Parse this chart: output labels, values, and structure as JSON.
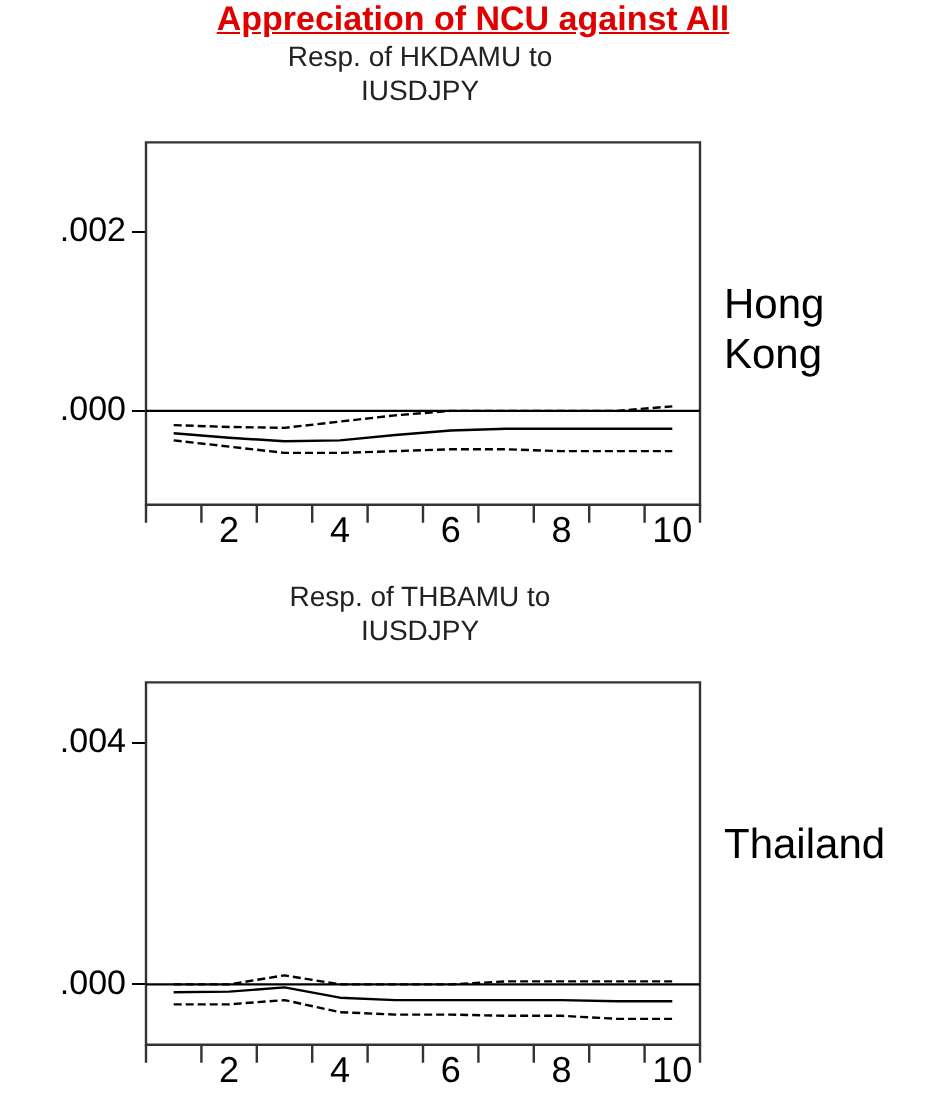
{
  "chart_data": [
    {
      "type": "line",
      "title": "Resp. of HKDAMU to IUSDJPY",
      "annotations": [
        "Appreciation of NCU against All",
        "Hong Kong"
      ],
      "x": [
        1,
        2,
        3,
        4,
        5,
        6,
        7,
        8,
        9,
        10
      ],
      "series": [
        {
          "color": "#000000",
          "line_style": "solid",
          "values": [
            -0.00025,
            -0.0003,
            -0.00034,
            -0.00033,
            -0.00027,
            -0.00022,
            -0.0002,
            -0.0002,
            -0.0002,
            -0.0002
          ]
        },
        {
          "color": "#000000",
          "line_style": "dashed",
          "values": [
            -0.00016,
            -0.00018,
            -0.00019,
            -0.00012,
            -5e-05,
            0,
            0,
            0,
            0,
            5e-05
          ]
        },
        {
          "color": "#000000",
          "line_style": "dashed",
          "values": [
            -0.00033,
            -0.0004,
            -0.00047,
            -0.00047,
            -0.00045,
            -0.00043,
            -0.00043,
            -0.00045,
            -0.00045,
            -0.00045
          ]
        }
      ],
      "xlim": [
        0.5,
        10.5
      ],
      "xticks": [
        {
          "value": 2,
          "label": "2"
        },
        {
          "value": 4,
          "label": "4"
        },
        {
          "value": 6,
          "label": "6"
        },
        {
          "value": 8,
          "label": "8"
        },
        {
          "value": 10,
          "label": "10"
        }
      ],
      "ylim": [
        -0.00105,
        0.003
      ],
      "yticks": [
        {
          "value": 0,
          "label": ".000"
        },
        {
          "value": 0.002,
          "label": ".002"
        }
      ],
      "ref_lines": [
        {
          "axis": "y",
          "value": 0
        }
      ],
      "marker": "none",
      "grid": false,
      "legend": false
    },
    {
      "type": "line",
      "title": "Resp. of THBAMU to IUSDJPY",
      "annotations": [
        "Thailand"
      ],
      "x": [
        1,
        2,
        3,
        4,
        5,
        6,
        7,
        8,
        9,
        10
      ],
      "series": [
        {
          "color": "#000000",
          "line_style": "solid",
          "values": [
            -0.00013,
            -0.00012,
            -5e-05,
            -0.00022,
            -0.00026,
            -0.00026,
            -0.00026,
            -0.00026,
            -0.00028,
            -0.00028
          ]
        },
        {
          "color": "#000000",
          "line_style": "dashed",
          "values": [
            0,
            0,
            0.00015,
            0,
            0,
            0,
            5e-05,
            5e-05,
            5e-05,
            5e-05
          ]
        },
        {
          "color": "#000000",
          "line_style": "dashed",
          "values": [
            -0.00033,
            -0.00033,
            -0.00026,
            -0.00046,
            -0.0005,
            -0.0005,
            -0.00052,
            -0.00052,
            -0.00057,
            -0.00057
          ]
        }
      ],
      "xlim": [
        0.5,
        10.5
      ],
      "xticks": [
        {
          "value": 2,
          "label": "2"
        },
        {
          "value": 4,
          "label": "4"
        },
        {
          "value": 6,
          "label": "6"
        },
        {
          "value": 8,
          "label": "8"
        },
        {
          "value": 10,
          "label": "10"
        }
      ],
      "ylim": [
        -0.001,
        0.005
      ],
      "yticks": [
        {
          "value": 0,
          "label": ".000"
        },
        {
          "value": 0.004,
          "label": ".004"
        }
      ],
      "ref_lines": [
        {
          "axis": "y",
          "value": 0
        }
      ],
      "marker": "none",
      "grid": false,
      "legend": false
    }
  ]
}
